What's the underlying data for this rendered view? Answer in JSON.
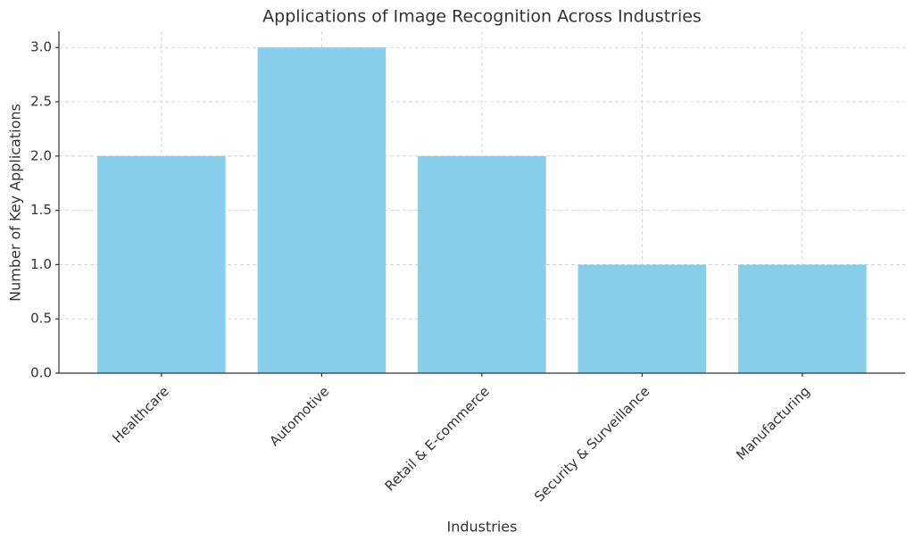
{
  "chart_data": {
    "type": "bar",
    "title": "Applications of Image Recognition Across Industries",
    "xlabel": "Industries",
    "ylabel": "Number of Key Applications",
    "categories": [
      "Healthcare",
      "Automotive",
      "Retail & E-commerce",
      "Security & Surveillance",
      "Manufacturing"
    ],
    "values": [
      2,
      3,
      2,
      1,
      1
    ],
    "color": "#87ceeb",
    "ylim": [
      0,
      3.15
    ],
    "yticks": [
      {
        "value": 0,
        "label": "0.0"
      },
      0.5,
      {
        "value": 1,
        "label": "1.0"
      },
      1.5,
      {
        "value": 2,
        "label": "2.0"
      },
      2.5,
      {
        "value": 3,
        "label": "3.0"
      }
    ],
    "grid": true
  }
}
